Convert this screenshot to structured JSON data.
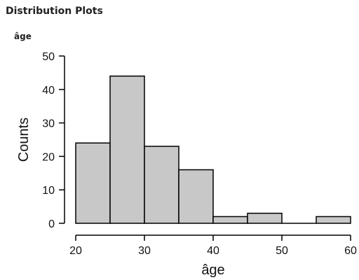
{
  "header": {
    "section_title": "Distribution Plots",
    "plot_title": "âge"
  },
  "chart_data": {
    "type": "bar",
    "title": "âge",
    "xlabel": "âge",
    "ylabel": "Counts",
    "xlim": [
      20,
      60
    ],
    "ylim": [
      0,
      50
    ],
    "xticks": [
      20,
      30,
      40,
      50,
      60
    ],
    "yticks": [
      0,
      10,
      20,
      30,
      40,
      50
    ],
    "bins": [
      {
        "x0": 20,
        "x1": 25,
        "count": 24
      },
      {
        "x0": 25,
        "x1": 30,
        "count": 44
      },
      {
        "x0": 30,
        "x1": 35,
        "count": 23
      },
      {
        "x0": 35,
        "x1": 40,
        "count": 16
      },
      {
        "x0": 40,
        "x1": 45,
        "count": 2
      },
      {
        "x0": 45,
        "x1": 50,
        "count": 3
      },
      {
        "x0": 50,
        "x1": 55,
        "count": 0
      },
      {
        "x0": 55,
        "x1": 60,
        "count": 2
      }
    ],
    "bar_color": "#c8c8c8",
    "edge_color": "#000000",
    "grid": false
  }
}
